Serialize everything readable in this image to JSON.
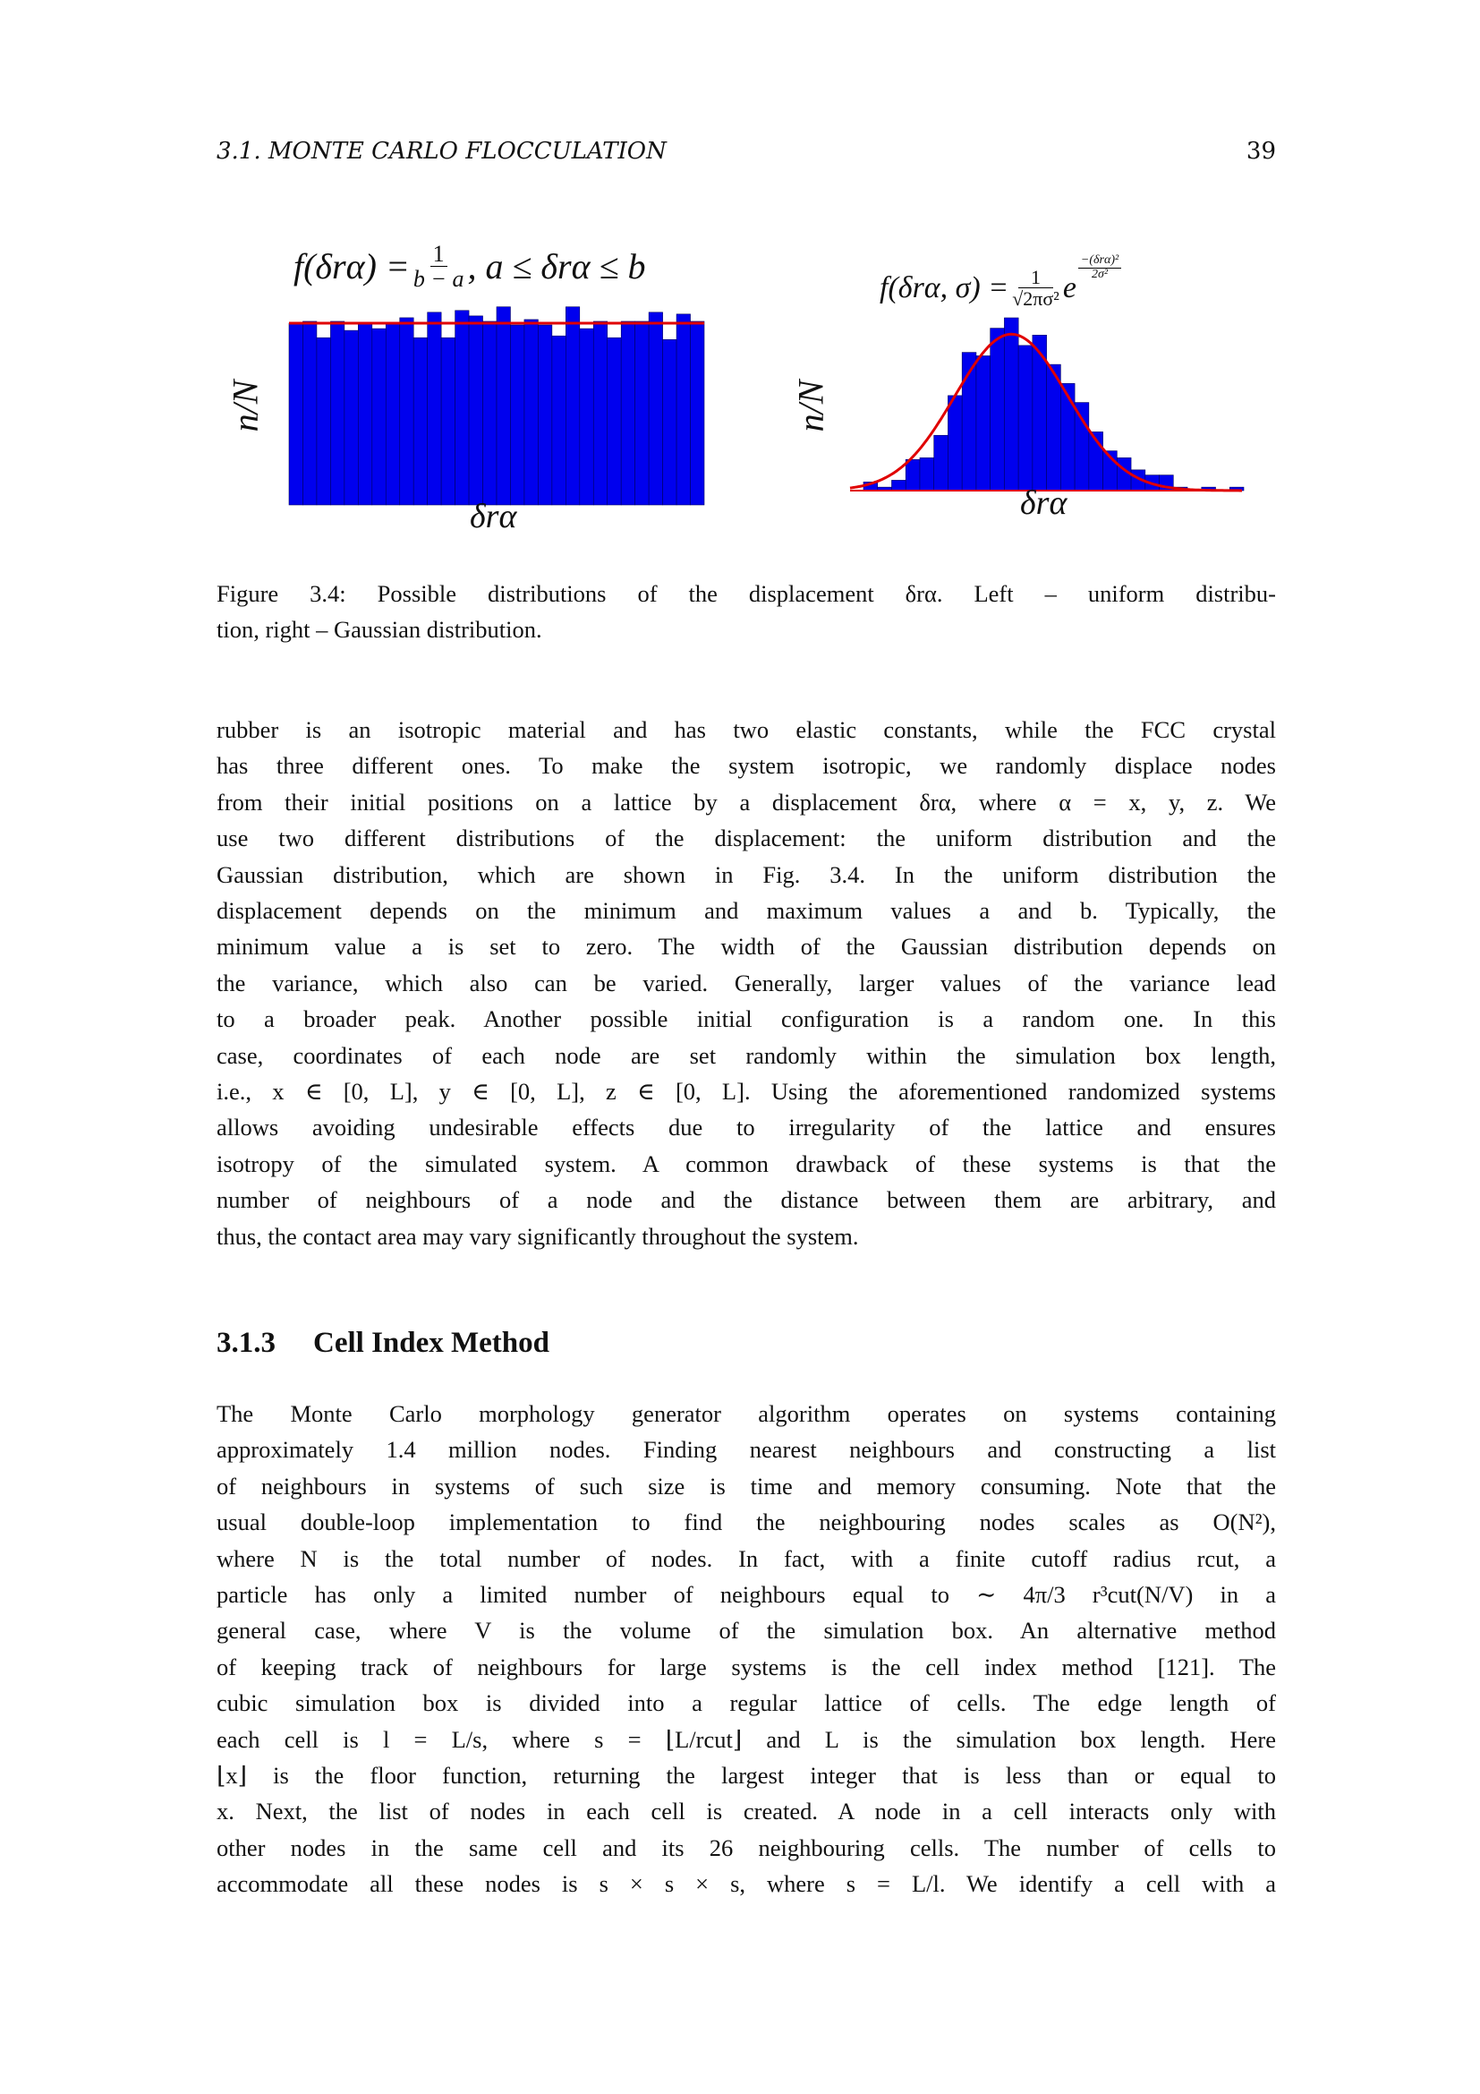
{
  "header": {
    "section": "3.1.  MONTE CARLO FLOCCULATION",
    "page_number": "39"
  },
  "figure": {
    "left_formula": {
      "lhs": "f(δrα) =",
      "num": "1",
      "den": "b − a",
      "rhs": ", a ≤ δrα ≤ b"
    },
    "right_formula": {
      "lhs": "f(δrα, σ) =",
      "num": "1",
      "den": "√2πσ²",
      "base": "e",
      "exp_num": "−(δrα)²",
      "exp_den": "2σ²"
    },
    "caption_lines": [
      "Figure 3.4: Possible distributions of the displacement δrα. Left – uniform distribu-",
      "tion, right – Gaussian distribution."
    ]
  },
  "chart_data": [
    {
      "type": "bar",
      "xlabel": "δrα",
      "ylabel": "n/N",
      "bar_color": "#0000ee",
      "fit_color": "#e00000",
      "fit": "uniform",
      "fit_level": 1.0,
      "values": [
        1.0,
        1.01,
        0.92,
        1.01,
        0.96,
        1.0,
        0.97,
        1.0,
        1.03,
        0.92,
        1.06,
        0.92,
        1.07,
        1.04,
        1.01,
        1.09,
        0.99,
        1.02,
        0.99,
        0.93,
        1.09,
        0.97,
        1.01,
        0.92,
        1.01,
        1.01,
        1.06,
        0.91,
        1.05,
        1.01
      ]
    },
    {
      "type": "bar",
      "xlabel": "δrα",
      "ylabel": "n/N",
      "bar_color": "#0000ee",
      "fit_color": "#e00000",
      "fit": "gaussian",
      "values": [
        0.05,
        0.02,
        0.06,
        0.18,
        0.19,
        0.32,
        0.55,
        0.8,
        0.78,
        0.94,
        1.0,
        0.84,
        0.9,
        0.73,
        0.62,
        0.51,
        0.34,
        0.23,
        0.19,
        0.12,
        0.09,
        0.09,
        0.02,
        0.003,
        0.02,
        0.0,
        0.02
      ]
    }
  ],
  "body": {
    "paragraph1": [
      "rubber is an isotropic material and has two elastic constants, while the FCC crystal",
      "has three different ones. To make the system isotropic, we randomly displace nodes",
      "from their initial positions on a lattice by a displacement δrα, where α = x, y, z. We",
      "use two different distributions of the displacement: the uniform distribution and the",
      "Gaussian distribution, which are shown in Fig. 3.4. In the uniform distribution the",
      "displacement depends on the minimum and maximum values a and b. Typically, the",
      "minimum value a is set to zero. The width of the Gaussian distribution depends on",
      "the variance, which also can be varied. Generally, larger values of the variance lead",
      "to a broader peak. Another possible initial configuration is a random one. In this",
      "case, coordinates of each node are set randomly within the simulation box length,",
      "i.e., x ∈ [0, L], y ∈ [0, L], z ∈ [0, L]. Using the aforementioned randomized systems",
      "allows avoiding undesirable effects due to irregularity of the lattice and ensures",
      "isotropy of the simulated system. A common drawback of these systems is that the",
      "number of neighbours of a node and the distance between them are arbitrary, and",
      "thus, the contact area may vary significantly throughout the system."
    ],
    "section_number": "3.1.3",
    "section_title": "Cell Index Method",
    "paragraph2": [
      "The Monte Carlo morphology generator algorithm operates on systems containing",
      "approximately 1.4 million nodes. Finding nearest neighbours and constructing a list",
      "of neighbours in systems of such size is time and memory consuming. Note that the",
      "usual double-loop implementation to find the neighbouring nodes scales as O(N²),",
      "where N is the total number of nodes. In fact, with a finite cutoff radius rcut, a",
      "particle has only a limited number of neighbours equal to ∼ 4π/3 r³cut(N/V) in a",
      "general case, where V is the volume of the simulation box. An alternative method",
      "of keeping track of neighbours for large systems is the cell index method [121]. The",
      "cubic simulation box is divided into a regular lattice of cells. The edge length of",
      "each cell is l = L/s, where s = ⌊L/rcut⌋ and L is the simulation box length. Here",
      "⌊x⌋ is the floor function, returning the largest integer that is less than or equal to",
      "x. Next, the list of nodes in each cell is created. A node in a cell interacts only with",
      "other nodes in the same cell and its 26 neighbouring cells. The number of cells to",
      "accommodate all these nodes is s × s × s, where s = L/l. We identify a cell with a"
    ]
  }
}
